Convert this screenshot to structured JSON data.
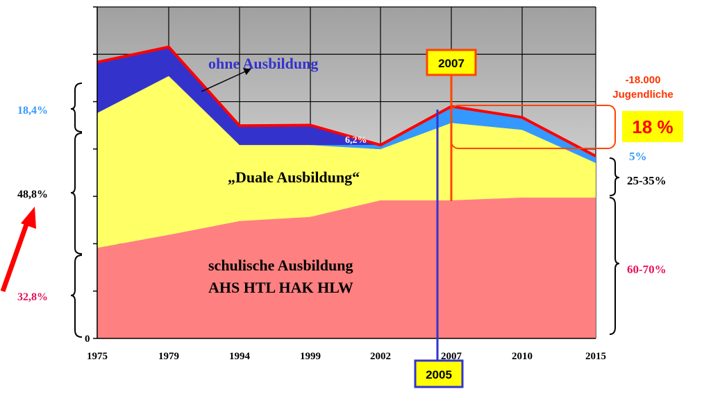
{
  "chart_data": {
    "type": "area",
    "stacked": true,
    "categories": [
      "1975",
      "1979",
      "1994",
      "1999",
      "2002",
      "2007",
      "2010",
      "2015"
    ],
    "series": [
      {
        "name": "schulische Ausbildung AHS HTL HAK HLW",
        "color": "#ff8080",
        "values": [
          32.8,
          37.5,
          42.5,
          44.0,
          50.0,
          50.0,
          51.0,
          51.0
        ]
      },
      {
        "name": "„Duale Ausbildung“",
        "color": "#ffff66",
        "values": [
          48.8,
          57.5,
          27.5,
          26.0,
          18.5,
          28.0,
          24.5,
          12.5
        ]
      },
      {
        "name": "5%",
        "color": "#3399ff",
        "values": [
          0,
          0,
          0,
          0,
          1.5,
          6.0,
          4.5,
          2.5
        ]
      },
      {
        "name": "ohne Ausbildung",
        "color": "#3333cc",
        "values": [
          18.4,
          10.5,
          7.0,
          7.2,
          0,
          0,
          0,
          0
        ]
      }
    ],
    "ylim": [
      0,
      120
    ],
    "grid": true,
    "background_top_color": "#a0a0a0",
    "outline_color": "#ff0000"
  },
  "labels": {
    "ohne": "ohne Ausbildung",
    "duale": "„Duale Ausbildung“",
    "schul_line1": "schulische Ausbildung",
    "schul_line2": "AHS HTL HAK HLW",
    "six_two": "6,2%",
    "box_2007": "2007",
    "box_2005": "2005",
    "jugend_line1": "-18.000",
    "jugend_line2": "Jugendliche",
    "big_18": "18 %",
    "right_5": "5%",
    "right_25_35": "25-35%",
    "right_60_70": "60-70%",
    "left_184": "18,4%",
    "left_488": "48,8%",
    "left_328": "32,8%",
    "y_zero": "0"
  }
}
